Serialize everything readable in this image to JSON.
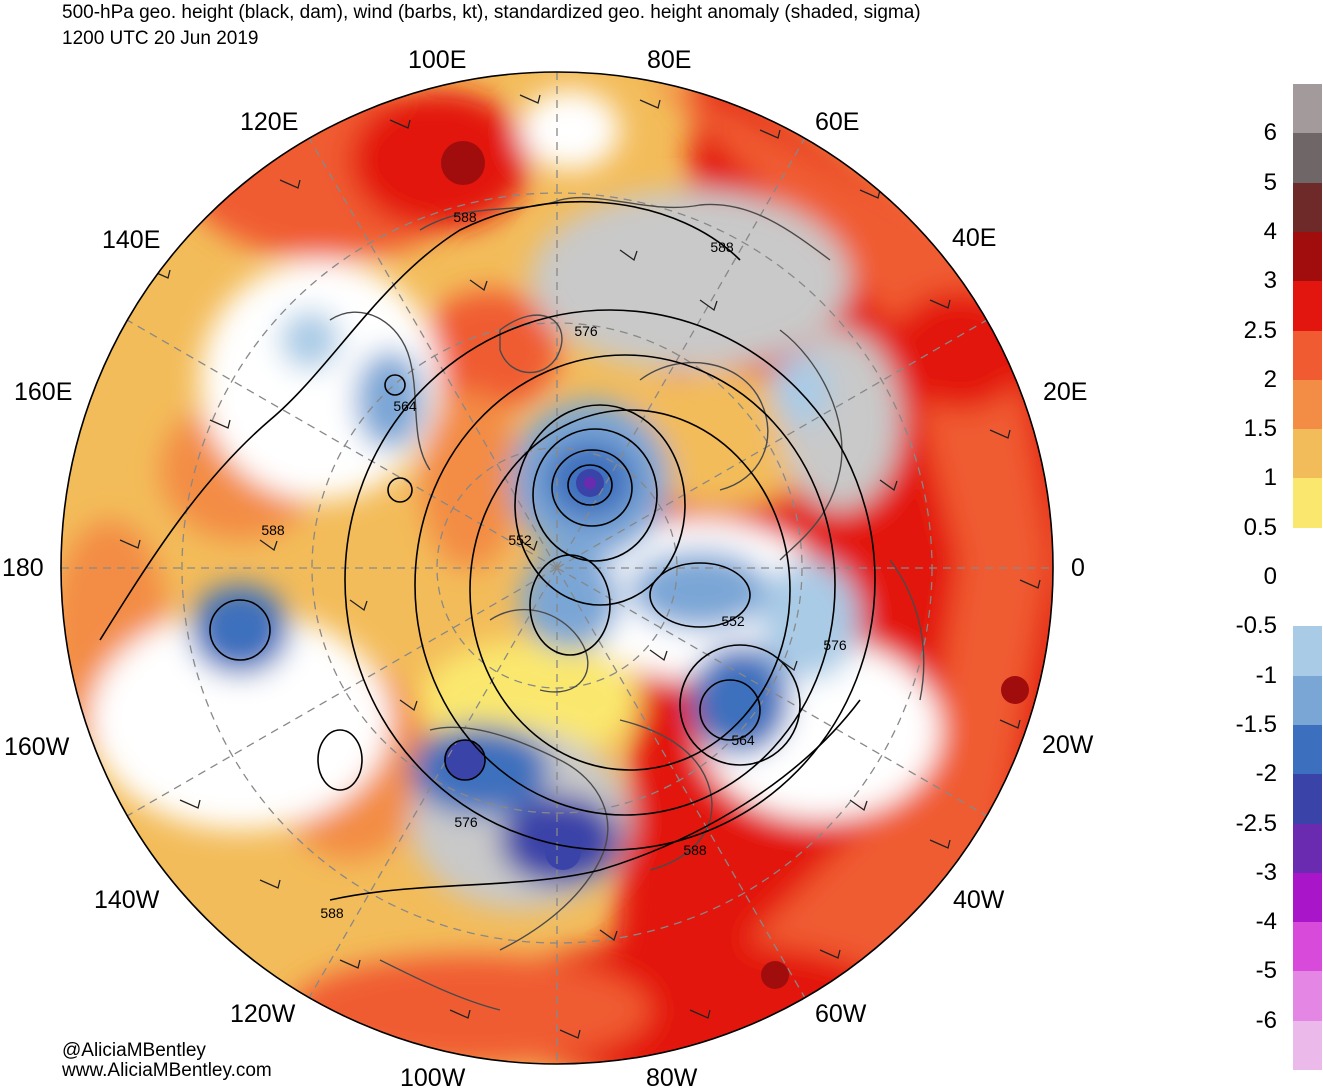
{
  "header": {
    "title": "500-hPa geo. height (black, dam), wind (barbs, kt), standardized geo. height anomaly (shaded, sigma)",
    "valid_time": "1200 UTC 20 Jun 2019"
  },
  "longitude_labels": {
    "lon_100e": "100E",
    "lon_80e": "80E",
    "lon_120e": "120E",
    "lon_60e": "60E",
    "lon_140e": "140E",
    "lon_40e": "40E",
    "lon_160e": "160E",
    "lon_20e": "20E",
    "lon_180": "180",
    "lon_0": "0",
    "lon_160w": "160W",
    "lon_20w": "20W",
    "lon_140w": "140W",
    "lon_40w": "40W",
    "lon_120w": "120W",
    "lon_60w": "60W",
    "lon_100w": "100W",
    "lon_80w": "80W"
  },
  "contour_labels": {
    "c1": "588",
    "c2": "588",
    "c3": "576",
    "c4": "564",
    "c5": "588",
    "c6": "552",
    "c7": "552",
    "c8": "576",
    "c9": "564",
    "c10": "576",
    "c11": "588",
    "c12": "588"
  },
  "credits": {
    "handle": "@AliciaMBentley",
    "website": "www.AliciaMBentley.com"
  },
  "colorbar": {
    "labels": [
      "6",
      "5",
      "4",
      "3",
      "2.5",
      "2",
      "1.5",
      "1",
      "0.5",
      "0",
      "-0.5",
      "-1",
      "-1.5",
      "-2",
      "-2.5",
      "-3",
      "-4",
      "-5",
      "-6"
    ],
    "colors": [
      "#a39b9b",
      "#6f6767",
      "#6e2a28",
      "#a10d0d",
      "#e3150f",
      "#f05b32",
      "#f38c44",
      "#f3bc5a",
      "#fae86e",
      "#ffffff",
      "#ffffff",
      "#a9cbe6",
      "#7aa6d6",
      "#3c6fbd",
      "#3a43a8",
      "#6a2bb0",
      "#a915c8",
      "#d84ad9",
      "#e487e4",
      "#ecbaea"
    ],
    "color_names": [
      "gray",
      "dark-gray",
      "brown",
      "dark-red",
      "red",
      "red-orange",
      "orange",
      "light-orange",
      "yellow",
      "white",
      "white",
      "light-blue",
      "blue",
      "medium-blue",
      "dark-blue",
      "indigo",
      "purple",
      "magenta",
      "light-magenta",
      "lavender"
    ]
  }
}
